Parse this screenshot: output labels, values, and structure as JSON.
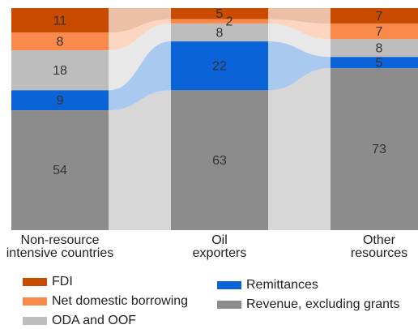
{
  "chart_data": {
    "type": "stacked_bar",
    "categories": [
      "Non-resource intensive countries",
      "Oil exporters",
      "Other resources"
    ],
    "series": [
      {
        "name": "FDI",
        "color": "#c84b00",
        "values": [
          11,
          5,
          7
        ]
      },
      {
        "name": "Net domestic borrowing",
        "color": "#fa8a4c",
        "values": [
          8,
          2,
          7
        ]
      },
      {
        "name": "ODA and OOF",
        "color": "#bdbdbd",
        "values": [
          18,
          8,
          8
        ]
      },
      {
        "name": "Remittances",
        "color": "#0a64d8",
        "values": [
          9,
          22,
          5
        ]
      },
      {
        "name": "Revenue, excluding grants",
        "color": "#8c8c8c",
        "values": [
          54,
          63,
          73
        ]
      }
    ],
    "ylim": [
      0,
      100
    ]
  }
}
